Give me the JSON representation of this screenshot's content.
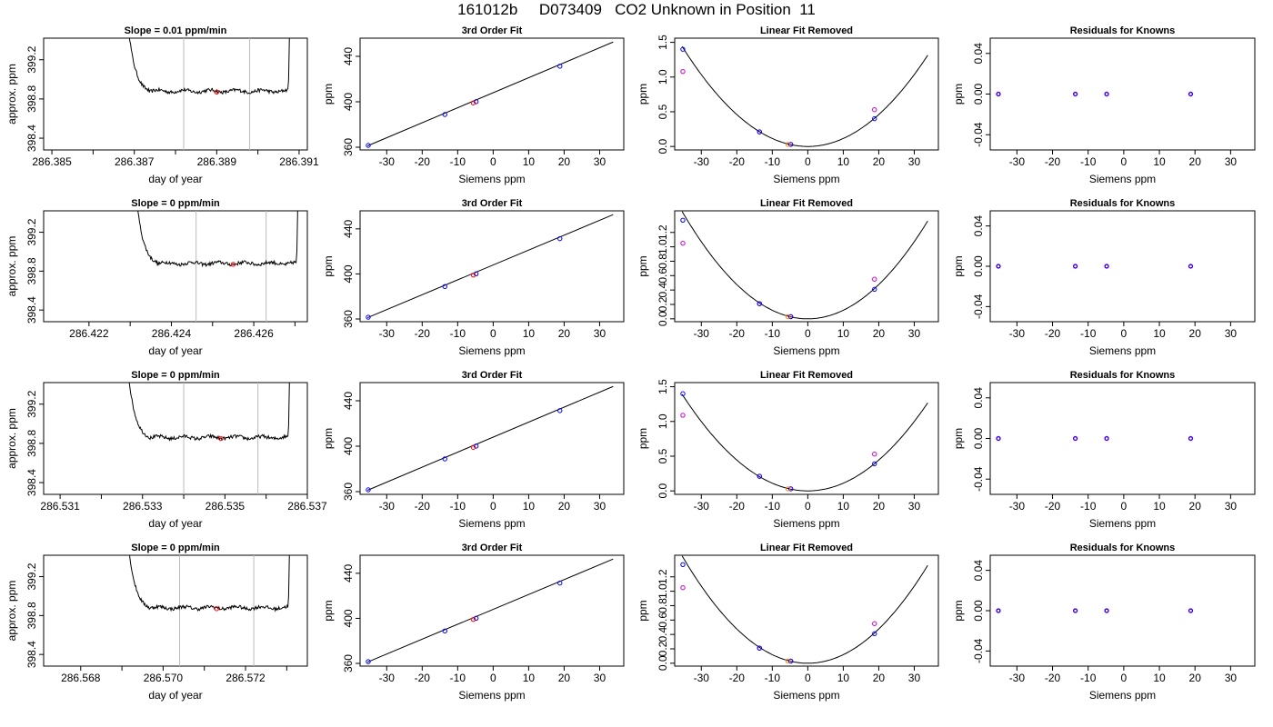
{
  "page_title": "161012b     D073409   CO2 Unknown in Position  11",
  "colors": {
    "axis": "#000000",
    "trace": "#000000",
    "guide_lines": "#bbbbbb",
    "known_points": "#0000ff",
    "fit_points": "#cc00cc",
    "unknown_point": "#ff0000",
    "unknown_point_alt": "#ff8800"
  },
  "chart_data": [
    {
      "type": "line",
      "panel": "timeseries",
      "row": 1,
      "title": "Slope =  0.01  ppm/min",
      "xlabel": "day of year",
      "ylabel": "approx. ppm",
      "xlim": [
        286.3848,
        286.3912
      ],
      "ylim": [
        398.28,
        399.42
      ],
      "xticks": [
        286.385,
        286.386,
        286.387,
        286.388,
        286.389,
        286.39,
        286.391
      ],
      "xtick_labels": [
        "286.385",
        "",
        "286.387",
        "",
        "286.389",
        "",
        "286.391"
      ],
      "yticks": [
        398.4,
        398.8,
        399.2
      ],
      "ytick_labels": [
        "398.4",
        "398.8",
        "399.2"
      ],
      "window": [
        286.3882,
        286.3898
      ],
      "mean_point": [
        286.389,
        398.87
      ],
      "start": 286.3868,
      "end": 286.3908,
      "level": 398.88
    },
    {
      "type": "line",
      "panel": "timeseries",
      "row": 2,
      "title": "Slope =  0  ppm/min",
      "xlabel": "day of year",
      "ylabel": "approx. ppm",
      "xlim": [
        286.4209,
        286.4273
      ],
      "ylim": [
        398.28,
        399.42
      ],
      "xticks": [
        286.422,
        286.423,
        286.424,
        286.425,
        286.426,
        286.427
      ],
      "xtick_labels": [
        "286.422",
        "",
        "286.424",
        "",
        "286.426",
        ""
      ],
      "yticks": [
        398.4,
        398.8,
        399.2
      ],
      "ytick_labels": [
        "398.4",
        "398.8",
        "399.2"
      ],
      "window": [
        286.4246,
        286.4263
      ],
      "mean_point": [
        286.4255,
        398.87
      ],
      "start": 286.4231,
      "end": 286.4271,
      "level": 398.88
    },
    {
      "type": "line",
      "panel": "timeseries",
      "row": 3,
      "title": "Slope =  0  ppm/min",
      "xlabel": "day of year",
      "ylabel": "approx. ppm",
      "xlim": [
        286.5306,
        286.537
      ],
      "ylim": [
        398.28,
        399.42
      ],
      "xticks": [
        286.531,
        286.532,
        286.533,
        286.534,
        286.535,
        286.536,
        286.537
      ],
      "xtick_labels": [
        "286.531",
        "",
        "286.533",
        "",
        "286.535",
        "",
        "286.537"
      ],
      "yticks": [
        398.4,
        398.8,
        399.2
      ],
      "ytick_labels": [
        "398.4",
        "398.8",
        "399.2"
      ],
      "window": [
        286.534,
        286.5358
      ],
      "mean_point": [
        286.5349,
        398.85
      ],
      "start": 286.5326,
      "end": 286.5366,
      "level": 398.86
    },
    {
      "type": "line",
      "panel": "timeseries",
      "row": 4,
      "title": "Slope =  0  ppm/min",
      "xlabel": "day of year",
      "ylabel": "approx. ppm",
      "xlim": [
        286.5671,
        286.5735
      ],
      "ylim": [
        398.28,
        399.42
      ],
      "xticks": [
        286.568,
        286.569,
        286.57,
        286.571,
        286.572,
        286.573
      ],
      "xtick_labels": [
        "286.568",
        "",
        "286.570",
        "",
        "286.572",
        ""
      ],
      "yticks": [
        398.4,
        398.8,
        399.2
      ],
      "ytick_labels": [
        "398.4",
        "398.8",
        "399.2"
      ],
      "window": [
        286.5704,
        286.5722
      ],
      "mean_point": [
        286.5713,
        398.87
      ],
      "start": 286.5691,
      "end": 286.5731,
      "level": 398.88
    },
    {
      "type": "scatter",
      "panel": "fit",
      "row": 1,
      "title": "3rd Order Fit",
      "xlabel": "Siemens ppm",
      "ylabel": "ppm",
      "xlim": [
        -37.5,
        36.8
      ],
      "ylim": [
        357.6,
        456
      ],
      "xticks": [
        -30,
        -20,
        -10,
        0,
        10,
        20,
        30
      ],
      "xtick_labels": [
        "-30",
        "-20",
        "-10",
        "0",
        "10",
        "20",
        "30"
      ],
      "yticks": [
        360,
        400,
        440
      ],
      "ytick_labels": [
        "360",
        "400",
        "440"
      ],
      "line": [
        [
          -35.4,
          361.2
        ],
        [
          33.8,
          452.6
        ]
      ],
      "knowns": [
        [
          -35.2,
          361.6
        ],
        [
          -13.6,
          388.8
        ],
        [
          -4.8,
          400.1
        ],
        [
          18.8,
          431.3
        ]
      ],
      "unknown": [
        -5.6,
        399.0
      ]
    },
    {
      "type": "scatter",
      "panel": "fit",
      "row": 2,
      "title": "3rd Order Fit",
      "xlabel": "Siemens ppm",
      "ylabel": "ppm",
      "xlim": [
        -37.5,
        36.8
      ],
      "ylim": [
        357.6,
        456
      ],
      "xticks": [
        -30,
        -20,
        -10,
        0,
        10,
        20,
        30
      ],
      "xtick_labels": [
        "-30",
        "-20",
        "-10",
        "0",
        "10",
        "20",
        "30"
      ],
      "yticks": [
        360,
        400,
        440
      ],
      "ytick_labels": [
        "360",
        "400",
        "440"
      ],
      "line": [
        [
          -35.4,
          361.2
        ],
        [
          33.8,
          452.6
        ]
      ],
      "knowns": [
        [
          -35.2,
          361.6
        ],
        [
          -13.6,
          388.8
        ],
        [
          -4.8,
          400.1
        ],
        [
          18.8,
          431.3
        ]
      ],
      "unknown": [
        -5.6,
        399.0
      ]
    },
    {
      "type": "scatter",
      "panel": "fit",
      "row": 3,
      "title": "3rd Order Fit",
      "xlabel": "Siemens ppm",
      "ylabel": "ppm",
      "xlim": [
        -37.5,
        36.8
      ],
      "ylim": [
        357.6,
        456
      ],
      "xticks": [
        -30,
        -20,
        -10,
        0,
        10,
        20,
        30
      ],
      "xtick_labels": [
        "-30",
        "-20",
        "-10",
        "0",
        "10",
        "20",
        "30"
      ],
      "yticks": [
        360,
        400,
        440
      ],
      "ytick_labels": [
        "360",
        "400",
        "440"
      ],
      "line": [
        [
          -35.4,
          361.2
        ],
        [
          33.8,
          452.6
        ]
      ],
      "knowns": [
        [
          -35.2,
          361.6
        ],
        [
          -13.6,
          388.8
        ],
        [
          -4.8,
          400.1
        ],
        [
          18.8,
          431.3
        ]
      ],
      "unknown": [
        -5.6,
        399.0
      ]
    },
    {
      "type": "scatter",
      "panel": "fit",
      "row": 4,
      "title": "3rd Order Fit",
      "xlabel": "Siemens ppm",
      "ylabel": "ppm",
      "xlim": [
        -37.5,
        36.8
      ],
      "ylim": [
        357.6,
        456
      ],
      "xticks": [
        -30,
        -20,
        -10,
        0,
        10,
        20,
        30
      ],
      "xtick_labels": [
        "-30",
        "-20",
        "-10",
        "0",
        "10",
        "20",
        "30"
      ],
      "yticks": [
        360,
        400,
        440
      ],
      "ytick_labels": [
        "360",
        "400",
        "440"
      ],
      "line": [
        [
          -35.4,
          361.2
        ],
        [
          33.8,
          452.6
        ]
      ],
      "knowns": [
        [
          -35.2,
          361.6
        ],
        [
          -13.6,
          388.8
        ],
        [
          -4.8,
          400.1
        ],
        [
          18.8,
          431.3
        ]
      ],
      "unknown": [
        -5.6,
        399.0
      ]
    },
    {
      "type": "scatter",
      "panel": "linear_removed",
      "row": 1,
      "title": "Linear Fit Removed",
      "xlabel": "Siemens ppm",
      "ylabel": "ppm",
      "xlim": [
        -37.5,
        36.8
      ],
      "ylim": [
        -0.05,
        1.56
      ],
      "xticks": [
        -30,
        -20,
        -10,
        0,
        10,
        20,
        30
      ],
      "xtick_labels": [
        "-30",
        "-20",
        "-10",
        "0",
        "10",
        "20",
        "30"
      ],
      "yticks": [
        0,
        0.5,
        1.0,
        1.5
      ],
      "ytick_labels": [
        "0.0",
        "0.5",
        "1.0",
        "1.5"
      ],
      "curve_a": 0.00115,
      "curve_x": [
        -35.4,
        33.8
      ],
      "knowns": [
        [
          -35.2,
          1.4
        ],
        [
          -13.6,
          0.21
        ],
        [
          -4.8,
          0.03
        ],
        [
          18.8,
          0.4
        ]
      ],
      "fit_points": [
        [
          -35.2,
          1.08
        ],
        [
          -13.6,
          0.21
        ],
        [
          -4.8,
          0.03
        ],
        [
          18.8,
          0.53
        ]
      ],
      "unknown": [
        -5.6,
        0.03
      ]
    },
    {
      "type": "scatter",
      "panel": "linear_removed",
      "row": 2,
      "title": "Linear Fit Removed",
      "xlabel": "Siemens ppm",
      "ylabel": "ppm",
      "xlim": [
        -37.5,
        36.8
      ],
      "ylim": [
        -0.04,
        1.5
      ],
      "xticks": [
        -30,
        -20,
        -10,
        0,
        10,
        20,
        30
      ],
      "xtick_labels": [
        "-30",
        "-20",
        "-10",
        "0",
        "10",
        "20",
        "30"
      ],
      "yticks": [
        0,
        0.2,
        0.4,
        0.6,
        0.8,
        1.0,
        1.2
      ],
      "ytick_labels": [
        "0.0",
        "0.2",
        "0.4",
        "0.6",
        "0.8",
        "1.0",
        "1.2"
      ],
      "curve_a": 0.00119,
      "curve_x": [
        -35.4,
        33.8
      ],
      "knowns": [
        [
          -35.2,
          1.37
        ],
        [
          -13.6,
          0.21
        ],
        [
          -4.8,
          0.03
        ],
        [
          18.8,
          0.41
        ]
      ],
      "fit_points": [
        [
          -35.2,
          1.05
        ],
        [
          -13.6,
          0.21
        ],
        [
          -4.8,
          0.03
        ],
        [
          18.8,
          0.55
        ]
      ],
      "unknown": [
        -5.6,
        0.03
      ]
    },
    {
      "type": "scatter",
      "panel": "linear_removed",
      "row": 3,
      "title": "Linear Fit Removed",
      "xlabel": "Siemens ppm",
      "ylabel": "ppm",
      "xlim": [
        -37.5,
        36.8
      ],
      "ylim": [
        -0.05,
        1.56
      ],
      "xticks": [
        -30,
        -20,
        -10,
        0,
        10,
        20,
        30
      ],
      "xtick_labels": [
        "-30",
        "-20",
        "-10",
        "0",
        "10",
        "20",
        "30"
      ],
      "yticks": [
        0,
        0.5,
        1.0,
        1.5
      ],
      "ytick_labels": [
        "0.0",
        "0.5",
        "1.0",
        "1.5"
      ],
      "curve_a": 0.00111,
      "curve_x": [
        -35.4,
        33.8
      ],
      "knowns": [
        [
          -35.2,
          1.4
        ],
        [
          -13.6,
          0.21
        ],
        [
          -4.8,
          0.03
        ],
        [
          18.8,
          0.39
        ]
      ],
      "fit_points": [
        [
          -35.2,
          1.09
        ],
        [
          -13.6,
          0.21
        ],
        [
          -4.8,
          0.03
        ],
        [
          18.8,
          0.53
        ]
      ],
      "unknown": [
        -5.6,
        0.03
      ]
    },
    {
      "type": "scatter",
      "panel": "linear_removed",
      "row": 4,
      "title": "Linear Fit Removed",
      "xlabel": "Siemens ppm",
      "ylabel": "ppm",
      "xlim": [
        -37.5,
        36.8
      ],
      "ylim": [
        -0.04,
        1.5
      ],
      "xticks": [
        -30,
        -20,
        -10,
        0,
        10,
        20,
        30
      ],
      "xtick_labels": [
        "-30",
        "-20",
        "-10",
        "0",
        "10",
        "20",
        "30"
      ],
      "yticks": [
        0,
        0.2,
        0.4,
        0.6,
        0.8,
        1.0,
        1.2
      ],
      "ytick_labels": [
        "0.0",
        "0.2",
        "0.4",
        "0.6",
        "0.8",
        "1.0",
        "1.2"
      ],
      "curve_a": 0.00119,
      "curve_x": [
        -35.4,
        33.8
      ],
      "knowns": [
        [
          -35.2,
          1.37
        ],
        [
          -13.6,
          0.21
        ],
        [
          -4.8,
          0.03
        ],
        [
          18.8,
          0.41
        ]
      ],
      "fit_points": [
        [
          -35.2,
          1.05
        ],
        [
          -13.6,
          0.21
        ],
        [
          -4.8,
          0.03
        ],
        [
          18.8,
          0.55
        ]
      ],
      "unknown": [
        -5.6,
        0.03
      ]
    },
    {
      "type": "scatter",
      "panel": "residuals",
      "row": 1,
      "title": "Residuals for Knowns",
      "xlabel": "Siemens ppm",
      "ylabel": "ppm",
      "xlim": [
        -37.5,
        36.8
      ],
      "ylim": [
        -0.055,
        0.055
      ],
      "xticks": [
        -30,
        -20,
        -10,
        0,
        10,
        20,
        30
      ],
      "xtick_labels": [
        "-30",
        "-20",
        "-10",
        "0",
        "10",
        "20",
        "30"
      ],
      "yticks": [
        -0.04,
        0,
        0.04
      ],
      "ytick_labels": [
        "-0.04",
        "0.00",
        "0.04"
      ],
      "points": [
        [
          -35.2,
          0
        ],
        [
          -13.6,
          0
        ],
        [
          -4.8,
          0
        ],
        [
          18.8,
          0
        ]
      ]
    },
    {
      "type": "scatter",
      "panel": "residuals",
      "row": 2,
      "title": "Residuals for Knowns",
      "xlabel": "Siemens ppm",
      "ylabel": "ppm",
      "xlim": [
        -37.5,
        36.8
      ],
      "ylim": [
        -0.055,
        0.055
      ],
      "xticks": [
        -30,
        -20,
        -10,
        0,
        10,
        20,
        30
      ],
      "xtick_labels": [
        "-30",
        "-20",
        "-10",
        "0",
        "10",
        "20",
        "30"
      ],
      "yticks": [
        -0.04,
        0,
        0.04
      ],
      "ytick_labels": [
        "-0.04",
        "0.00",
        "0.04"
      ],
      "points": [
        [
          -35.2,
          0
        ],
        [
          -13.6,
          0
        ],
        [
          -4.8,
          0
        ],
        [
          18.8,
          0
        ]
      ]
    },
    {
      "type": "scatter",
      "panel": "residuals",
      "row": 3,
      "title": "Residuals for Knowns",
      "xlabel": "Siemens ppm",
      "ylabel": "ppm",
      "xlim": [
        -37.5,
        36.8
      ],
      "ylim": [
        -0.055,
        0.055
      ],
      "xticks": [
        -30,
        -20,
        -10,
        0,
        10,
        20,
        30
      ],
      "xtick_labels": [
        "-30",
        "-20",
        "-10",
        "0",
        "10",
        "20",
        "30"
      ],
      "yticks": [
        -0.04,
        0,
        0.04
      ],
      "ytick_labels": [
        "-0.04",
        "0.00",
        "0.04"
      ],
      "points": [
        [
          -35.2,
          0
        ],
        [
          -13.6,
          0
        ],
        [
          -4.8,
          0
        ],
        [
          18.8,
          0
        ]
      ]
    },
    {
      "type": "scatter",
      "panel": "residuals",
      "row": 4,
      "title": "Residuals for Knowns",
      "xlabel": "Siemens ppm",
      "ylabel": "ppm",
      "xlim": [
        -37.5,
        36.8
      ],
      "ylim": [
        -0.055,
        0.055
      ],
      "xticks": [
        -30,
        -20,
        -10,
        0,
        10,
        20,
        30
      ],
      "xtick_labels": [
        "-30",
        "-20",
        "-10",
        "0",
        "10",
        "20",
        "30"
      ],
      "yticks": [
        -0.04,
        0,
        0.04
      ],
      "ytick_labels": [
        "-0.04",
        "0.00",
        "0.04"
      ],
      "points": [
        [
          -35.2,
          0
        ],
        [
          -13.6,
          0
        ],
        [
          -4.8,
          0
        ],
        [
          18.8,
          0
        ]
      ]
    }
  ]
}
